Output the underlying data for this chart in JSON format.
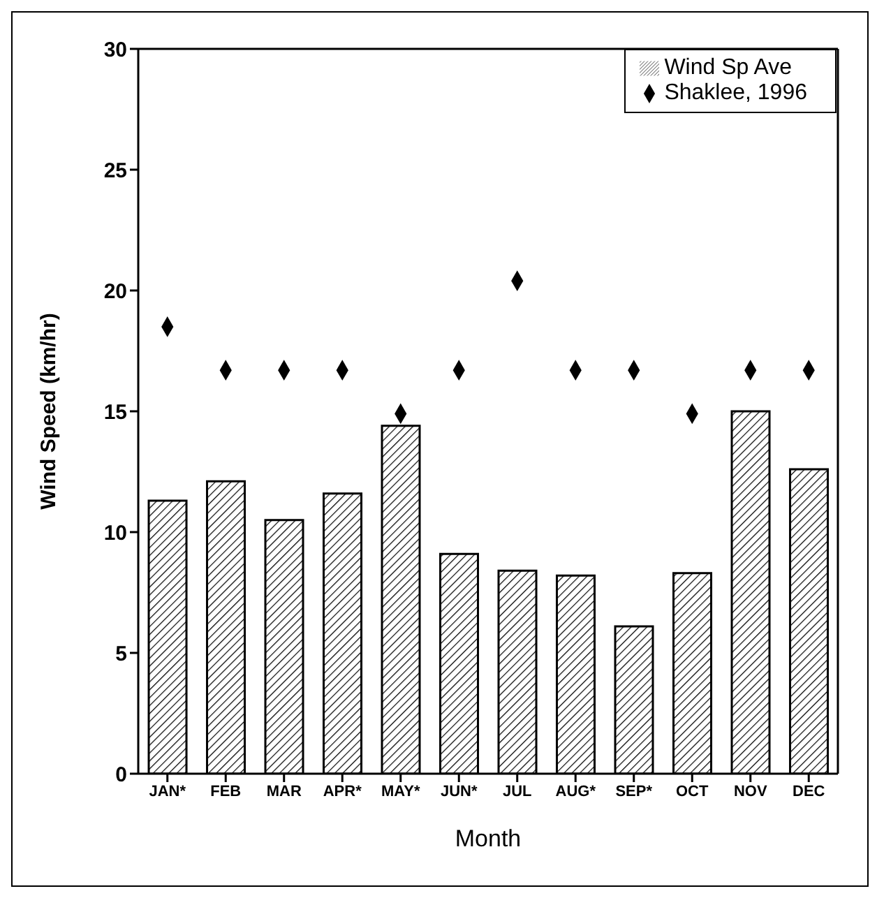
{
  "chart_data": {
    "type": "bar",
    "xlabel": "Month",
    "ylabel": "Wind Speed (km/hr)",
    "categories": [
      "JAN*",
      "FEB",
      "MAR",
      "APR*",
      "MAY*",
      "JUN*",
      "JUL",
      "AUG*",
      "SEP*",
      "OCT",
      "NOV",
      "DEC"
    ],
    "series": [
      {
        "name": "Wind Sp Ave",
        "type": "bar",
        "color": "#000000",
        "values": [
          11.3,
          12.1,
          10.5,
          11.6,
          14.4,
          9.1,
          8.4,
          8.2,
          6.1,
          8.3,
          15.0,
          12.6
        ]
      },
      {
        "name": "Shaklee, 1996",
        "type": "scatter",
        "color": "#000000",
        "values": [
          18.5,
          16.7,
          16.7,
          16.7,
          14.9,
          16.7,
          20.4,
          16.7,
          16.7,
          14.9,
          16.7,
          16.7
        ]
      }
    ],
    "ylim": [
      0,
      30
    ],
    "yticks": [
      0,
      5,
      10,
      15,
      20,
      25,
      30
    ],
    "grid": false,
    "legend": "top right",
    "marker": "diamond"
  }
}
